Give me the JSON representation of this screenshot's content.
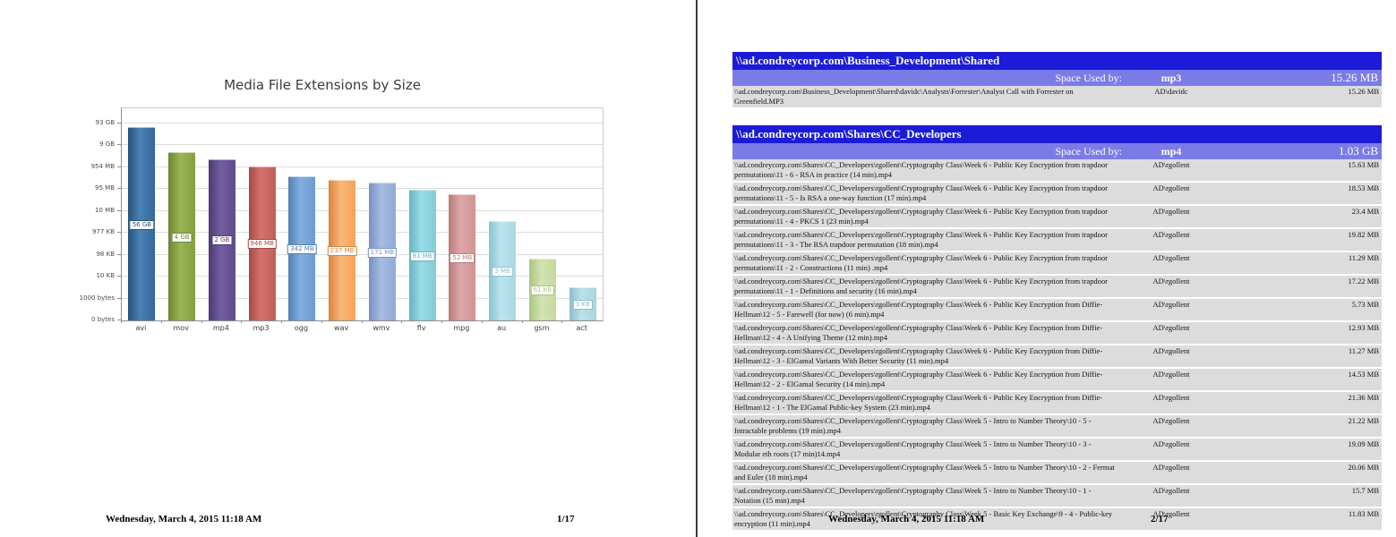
{
  "chart_data": {
    "type": "bar",
    "title": "Media File Extensions by Size",
    "scale": "log10",
    "grid": true,
    "categories": [
      "avi",
      "mov",
      "mp4",
      "mp3",
      "ogg",
      "wav",
      "wmv",
      "flv",
      "mpg",
      "au",
      "gsm",
      "act"
    ],
    "values_bytes": [
      60129542144,
      4294967296,
      2147483648,
      991952896,
      358612992,
      248512512,
      179306496,
      84934656,
      54525952,
      3145728,
      62464,
      3072
    ],
    "value_labels": [
      "56 GB",
      "4 GB",
      "2 GB",
      "946 MB",
      "342 MB",
      "237 MB",
      "171 MB",
      "81 MB",
      "52 MB",
      "3 MB",
      "61 KB",
      "3 KB"
    ],
    "y_tick_labels_bottom_to_top": [
      "0 bytes",
      "1000 bytes",
      "10 KB",
      "98 KB",
      "977 KB",
      "10 MB",
      "95 MB",
      "954 MB",
      "9 GB",
      "93 GB"
    ],
    "bar_colors": [
      {
        "main": "#33689b",
        "light": "#4a82b4",
        "border": "#28527a"
      },
      {
        "main": "#84a03e",
        "light": "#9ab554",
        "border": "#6b8532"
      },
      {
        "main": "#5f4b8a",
        "light": "#745ea3",
        "border": "#4c3a70"
      },
      {
        "main": "#c05d58",
        "light": "#d4736e",
        "border": "#a34a46"
      },
      {
        "main": "#6b9bd2",
        "light": "#82aede",
        "border": "#5380b5"
      },
      {
        "main": "#f4a259",
        "light": "#f8b877",
        "border": "#d9843c"
      },
      {
        "main": "#91abd8",
        "light": "#a5bce3",
        "border": "#7791c0"
      },
      {
        "main": "#82ccd9",
        "light": "#9adbe5",
        "border": "#65b3c2"
      },
      {
        "main": "#d09394",
        "light": "#dda8a8",
        "border": "#b97b7c"
      },
      {
        "main": "#a6d9e4",
        "light": "#bce5ee",
        "border": "#88c2d1"
      },
      {
        "main": "#c5d99e",
        "light": "#d3e3b2",
        "border": "#a9c47e"
      },
      {
        "main": "#a9d4e0",
        "light": "#bde1ea",
        "border": "#8cbccc"
      }
    ]
  },
  "page1": {
    "footer_date": "Wednesday, March 4, 2015 11:18 AM",
    "footer_page": "1/17"
  },
  "page2": {
    "footer_date": "Wednesday, March 4, 2015 11:18 AM",
    "footer_page": "2/17",
    "tables": [
      {
        "title": "\\\\ad.condreycorp.com\\Business_Development\\Shared",
        "space_label": "Space Used by:",
        "extension": "mp3",
        "total": "15.26 MB",
        "rows": [
          {
            "path": "\\\\ad.condreycorp.com\\Business_Development\\Shared\\davidc\\Analysts\\Forrester\\Analyst Call with Forrester on Greenfield.MP3",
            "owner": "AD\\davidc",
            "size": "15.26 MB"
          }
        ]
      },
      {
        "title": "\\\\ad.condreycorp.com\\Shares\\CC_Developers",
        "space_label": "Space Used by:",
        "extension": "mp4",
        "total": "1.03 GB",
        "rows": [
          {
            "path": "\\\\ad.condreycorp.com\\Shares\\CC_Developers\\rgollent\\Cryptography Class\\Week 6 - Public Key Encryption from trapdoor permutations\\11 - 6 - RSA in practice (14 min).mp4",
            "owner": "AD\\rgollent",
            "size": "15.63 MB"
          },
          {
            "path": "\\\\ad.condreycorp.com\\Shares\\CC_Developers\\rgollent\\Cryptography Class\\Week 6 - Public Key Encryption from trapdoor permutations\\11 - 5 - Is RSA a one-way function (17 min).mp4",
            "owner": "AD\\rgollent",
            "size": "18.53 MB"
          },
          {
            "path": "\\\\ad.condreycorp.com\\Shares\\CC_Developers\\rgollent\\Cryptography Class\\Week 6 - Public Key Encryption from trapdoor permutations\\11 - 4 - PKCS 1 (23 min).mp4",
            "owner": "AD\\rgollent",
            "size": "23.4 MB"
          },
          {
            "path": "\\\\ad.condreycorp.com\\Shares\\CC_Developers\\rgollent\\Cryptography Class\\Week 6 - Public Key Encryption from trapdoor permutations\\11 - 3 - The RSA trapdoor permutation (18 min).mp4",
            "owner": "AD\\rgollent",
            "size": "19.82 MB"
          },
          {
            "path": "\\\\ad.condreycorp.com\\Shares\\CC_Developers\\rgollent\\Cryptography Class\\Week 6 - Public Key Encryption from trapdoor permutations\\11 - 2 - Constructions (11 min) .mp4",
            "owner": "AD\\rgollent",
            "size": "11.29 MB"
          },
          {
            "path": "\\\\ad.condreycorp.com\\Shares\\CC_Developers\\rgollent\\Cryptography Class\\Week 6 - Public Key Encryption from trapdoor permutations\\11 - 1 - Definitions and security (16 min).mp4",
            "owner": "AD\\rgollent",
            "size": "17.22 MB"
          },
          {
            "path": "\\\\ad.condreycorp.com\\Shares\\CC_Developers\\rgollent\\Cryptography Class\\Week 6 - Public Key Encryption from Diffie-Hellman\\12 - 5 - Farewell   (for now) (6 min).mp4",
            "owner": "AD\\rgollent",
            "size": "5.73 MB"
          },
          {
            "path": "\\\\ad.condreycorp.com\\Shares\\CC_Developers\\rgollent\\Cryptography Class\\Week 6 - Public Key Encryption from Diffie-Hellman\\12 - 4 - A Unifying Theme (12 min).mp4",
            "owner": "AD\\rgollent",
            "size": "12.93 MB"
          },
          {
            "path": "\\\\ad.condreycorp.com\\Shares\\CC_Developers\\rgollent\\Cryptography Class\\Week 6 - Public Key Encryption from Diffie-Hellman\\12 - 3 - ElGamal Variants With Better Security (11 min).mp4",
            "owner": "AD\\rgollent",
            "size": "11.27 MB"
          },
          {
            "path": "\\\\ad.condreycorp.com\\Shares\\CC_Developers\\rgollent\\Cryptography Class\\Week 6 - Public Key Encryption from Diffie-Hellman\\12 - 2 - ElGamal Security (14 min).mp4",
            "owner": "AD\\rgollent",
            "size": "14.53 MB"
          },
          {
            "path": "\\\\ad.condreycorp.com\\Shares\\CC_Developers\\rgollent\\Cryptography Class\\Week 6 - Public Key Encryption from Diffie-Hellman\\12 - 1 - The ElGamal Public-key System (23 min).mp4",
            "owner": "AD\\rgollent",
            "size": "21.36 MB"
          },
          {
            "path": "\\\\ad.condreycorp.com\\Shares\\CC_Developers\\rgollent\\Cryptography Class\\Week 5 - Intro to Number Theory\\10 - 5 - Intractable problems (19 min).mp4",
            "owner": "AD\\rgollent",
            "size": "21.22 MB"
          },
          {
            "path": "\\\\ad.condreycorp.com\\Shares\\CC_Developers\\rgollent\\Cryptography Class\\Week 5 - Intro to Number Theory\\10 - 3 - Modular eth roots (17 min)14.mp4",
            "owner": "AD\\rgollent",
            "size": "19.09 MB"
          },
          {
            "path": "\\\\ad.condreycorp.com\\Shares\\CC_Developers\\rgollent\\Cryptography Class\\Week 5 - Intro to Number Theory\\10 - 2 - Fermat and Euler (18 min).mp4",
            "owner": "AD\\rgollent",
            "size": "20.06 MB"
          },
          {
            "path": "\\\\ad.condreycorp.com\\Shares\\CC_Developers\\rgollent\\Cryptography Class\\Week 5 - Intro to Number Theory\\10 - 1 - Notation (15 min).mp4",
            "owner": "AD\\rgollent",
            "size": "15.7 MB"
          },
          {
            "path": "\\\\ad.condreycorp.com\\Shares\\CC_Developers\\rgollent\\Cryptography Class\\Week 5 - Basic Key Exchange\\9 - 4 - Public-key encryption (11 min).mp4",
            "owner": "AD\\rgollent",
            "size": "11.83 MB"
          }
        ]
      }
    ]
  },
  "colors": {
    "table_header_bg": "#1b1bd8",
    "table_subheader_bg": "#7b7be8",
    "row_bg": "#dcdcdc",
    "divider": "#3a3a3a"
  }
}
